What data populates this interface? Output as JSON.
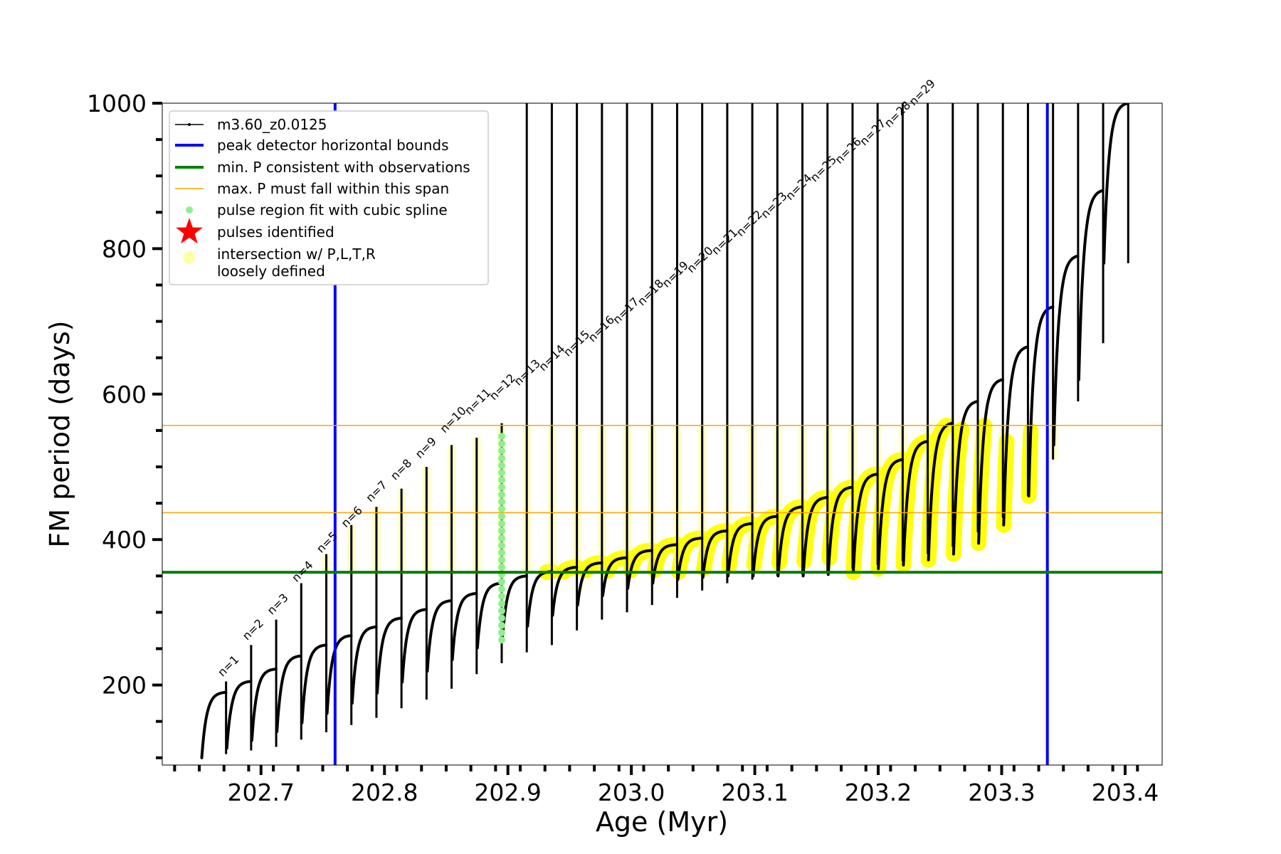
{
  "chart_data": {
    "type": "line",
    "xlabel": "Age (Myr)",
    "ylabel": "FM period (days)",
    "xlim": [
      202.62,
      203.43
    ],
    "ylim": [
      90,
      1000
    ],
    "x_major_ticks": [
      202.7,
      202.8,
      202.9,
      203.0,
      203.1,
      203.2,
      203.3,
      203.4
    ],
    "x_tick_labels": [
      "202.7",
      "202.8",
      "202.9",
      "203.0",
      "203.1",
      "203.2",
      "203.3",
      "203.4"
    ],
    "y_major_ticks": [
      200,
      400,
      600,
      800,
      1000
    ],
    "y_tick_labels": [
      "200",
      "400",
      "600",
      "800",
      "1000"
    ],
    "legend": {
      "placement": "upper-left",
      "entries": [
        {
          "label": "m3.60_z0.0125",
          "color": "#000000",
          "style": "line-marker"
        },
        {
          "label": "peak detector horizontal bounds",
          "color": "#0000ff",
          "style": "line"
        },
        {
          "label": "min. P consistent with observations",
          "color": "#008000",
          "style": "line"
        },
        {
          "label": "max. P must fall within this span",
          "color": "#ffa500",
          "style": "thin-line"
        },
        {
          "label": "pulse region fit with cubic spline",
          "color": "#90ee90",
          "style": "dot"
        },
        {
          "label": "pulses identified",
          "color": "#ff0000",
          "style": "star"
        },
        {
          "label": "intersection w/ P,L,T,R",
          "label2": "loosely defined",
          "color": "#ffffaa",
          "style": "circle"
        }
      ]
    },
    "peak_detector_bounds_x": [
      202.76,
      203.337
    ],
    "min_period": 355,
    "max_period_span": [
      437,
      557
    ],
    "pulses": {
      "start_age": 202.652,
      "spacing_myr": 0.0203,
      "count": 37,
      "labeled_count": 29,
      "labels": [
        "n=1",
        "n=2",
        "n=3",
        "n=4",
        "n=5",
        "n=6",
        "n=7",
        "n=8",
        "n=9",
        "n=10",
        "n=11",
        "n=12",
        "n=13",
        "n=14",
        "n=15",
        "n=16",
        "n=17",
        "n=18",
        "n=19",
        "n=20",
        "n=21",
        "n=22",
        "n=23",
        "n=24",
        "n=25",
        "n=26",
        "n=27",
        "n=28",
        "n=29"
      ],
      "label_anchor_age": [
        202.67,
        202.69,
        202.71,
        202.73,
        202.75,
        202.77,
        202.79,
        202.81,
        202.83,
        202.85,
        202.87,
        202.89,
        202.91,
        202.93,
        202.95,
        202.97,
        202.99,
        203.01,
        203.03,
        203.05,
        203.07,
        203.09,
        203.11,
        203.13,
        203.15,
        203.17,
        203.19,
        203.21,
        203.23
      ],
      "label_anchor_period": [
        205,
        255,
        290,
        335,
        375,
        410,
        445,
        475,
        505,
        540,
        565,
        585,
        605,
        625,
        645,
        665,
        690,
        715,
        740,
        760,
        785,
        810,
        835,
        860,
        885,
        910,
        935,
        960,
        990
      ],
      "quiescent_period": [
        100,
        113,
        124,
        136,
        148,
        161,
        175,
        189,
        204,
        219,
        235,
        251,
        266,
        281,
        296,
        310,
        323,
        333,
        340,
        345,
        348,
        350,
        350,
        350,
        350,
        352,
        355,
        360,
        365,
        372,
        380,
        395,
        420,
        460,
        530,
        620,
        780
      ],
      "peak_period": [
        190,
        205,
        222,
        240,
        255,
        268,
        280,
        292,
        304,
        316,
        326,
        340,
        350,
        356,
        362,
        368,
        375,
        385,
        393,
        402,
        412,
        422,
        432,
        445,
        458,
        472,
        490,
        510,
        535,
        560,
        590,
        620,
        665,
        720,
        790,
        880,
        1000
      ],
      "spike_max_period": [
        205,
        255,
        290,
        340,
        380,
        420,
        445,
        470,
        500,
        530,
        540,
        560,
        1000,
        1000,
        1000,
        1000,
        1000,
        1000,
        1000,
        1000,
        1000,
        1000,
        1000,
        1000,
        1000,
        1000,
        1000,
        1000,
        1000,
        1000,
        1000,
        1000,
        1000,
        1000,
        1000,
        1000,
        1000
      ],
      "spike_min_period": [
        105,
        110,
        115,
        125,
        135,
        145,
        155,
        168,
        180,
        195,
        215,
        230,
        245,
        255,
        275,
        290,
        300,
        310,
        320,
        330,
        340,
        345,
        350,
        352,
        355,
        360,
        365,
        370,
        380,
        390,
        410,
        430,
        460,
        510,
        590,
        670,
        780
      ],
      "spline_fit_pulse_index": 11,
      "spline_fit_range": [
        262,
        550
      ]
    }
  }
}
